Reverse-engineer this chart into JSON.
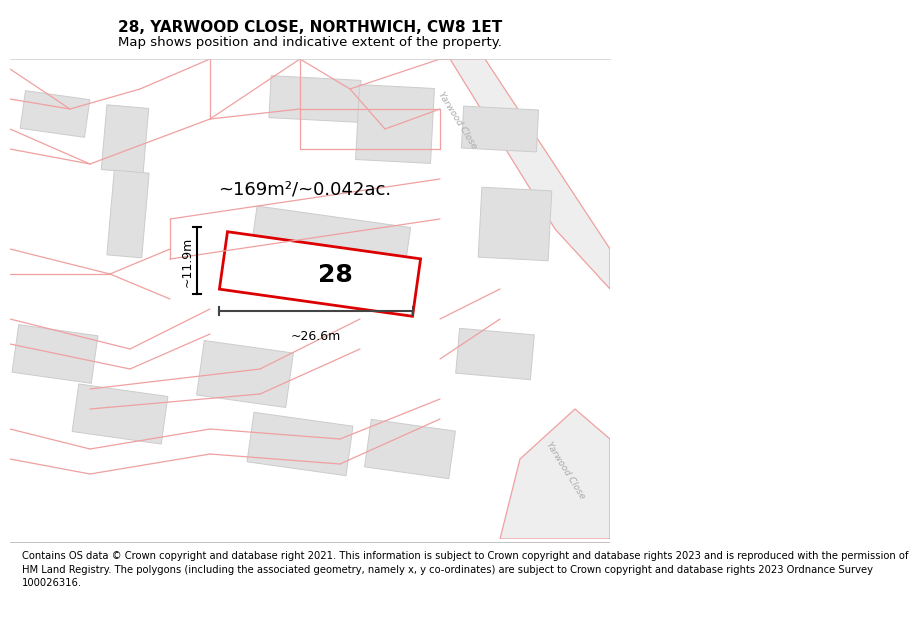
{
  "title": "28, YARWOOD CLOSE, NORTHWICH, CW8 1ET",
  "subtitle": "Map shows position and indicative extent of the property.",
  "footer_lines": [
    "Contains OS data © Crown copyright and database right 2021. This information is subject to Crown copyright and database rights 2023 and is reproduced with the permission of",
    "HM Land Registry. The polygons (including the associated geometry, namely x, y co-ordinates) are subject to Crown copyright and database rights 2023 Ordnance Survey",
    "100026316."
  ],
  "map_bg": "#f8f8f8",
  "road_color": "#f0a0a0",
  "road_fill": "#eeeeee",
  "building_fill": "#e0e0e0",
  "building_edge": "#cccccc",
  "highlight_color": "#dd0000",
  "highlight_fill": "#ffffff",
  "area_text": "~169m²/~0.042ac.",
  "number_text": "28",
  "dim_width": "~26.6m",
  "dim_height": "~11.9m",
  "road_label": "Yarwood Close",
  "title_fontsize": 11,
  "subtitle_fontsize": 9.5,
  "footer_fontsize": 7.2
}
